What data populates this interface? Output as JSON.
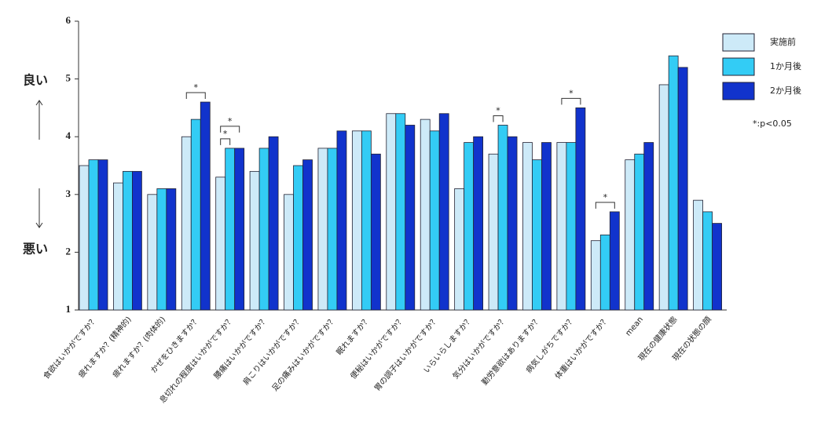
{
  "chart_data": {
    "type": "bar",
    "categories": [
      "食欲はいかがですか？",
      "疲れますか？(精神的)",
      "疲れますか？(肉体的)",
      "かぜをひきますか？",
      "息切れの程度はいかがですか？",
      "腰痛はいかがですか？",
      "肩こりはいかがですか？",
      "足の痛みはいかがですか？",
      "眠れますか？",
      "便秘はいかがですか？",
      "胃の調子はいかがですか？",
      "いらいらしますか？",
      "気分はいかがですか？",
      "勤労意欲はありますか？",
      "病気しがちですか？",
      "体重はいかがですか？",
      "mean",
      "現在の健康状態",
      "現在の状態の顔"
    ],
    "series": [
      {
        "name": "実施前",
        "color": "#cdeaf8",
        "values": [
          3.5,
          3.2,
          3.0,
          4.0,
          3.3,
          3.4,
          3.0,
          3.8,
          4.1,
          4.4,
          4.3,
          3.1,
          3.7,
          3.9,
          3.9,
          2.2,
          3.6,
          4.9,
          2.9
        ]
      },
      {
        "name": "1か月後",
        "color": "#33ccf5",
        "values": [
          3.6,
          3.4,
          3.1,
          4.3,
          3.8,
          3.8,
          3.5,
          3.8,
          4.1,
          4.4,
          4.1,
          3.9,
          4.2,
          3.6,
          3.9,
          2.3,
          3.7,
          5.4,
          2.7
        ]
      },
      {
        "name": "2か月後",
        "color": "#1133cc",
        "values": [
          3.6,
          3.4,
          3.1,
          4.6,
          3.8,
          4.0,
          3.6,
          4.1,
          3.7,
          4.2,
          4.4,
          4.0,
          4.0,
          3.9,
          4.5,
          2.7,
          3.9,
          5.2,
          2.5
        ]
      }
    ],
    "ylim": [
      1,
      6
    ],
    "yticks": [
      1,
      2,
      3,
      4,
      5,
      6
    ],
    "y_annotations": {
      "top": "良い",
      "bottom": "悪い"
    },
    "significance_note": "*:p<0.05",
    "significance": [
      {
        "category": "かぜをひきますか？",
        "from": "実施前",
        "to": "2か月後",
        "label": "*"
      },
      {
        "category": "息切れの程度はいかがですか？",
        "from": "実施前",
        "to": "1か月後",
        "label": "*"
      },
      {
        "category": "息切れの程度はいかがですか？",
        "from": "実施前",
        "to": "2か月後",
        "label": "*"
      },
      {
        "category": "気分はいかがですか？",
        "from": "実施前",
        "to": "1か月後",
        "label": "*"
      },
      {
        "category": "病気しがちですか？",
        "from": "実施前",
        "to": "2か月後",
        "label": "*"
      },
      {
        "category": "体重はいかがですか？",
        "from": "実施前",
        "to": "2か月後",
        "label": "*"
      }
    ],
    "legend": "top-right"
  }
}
